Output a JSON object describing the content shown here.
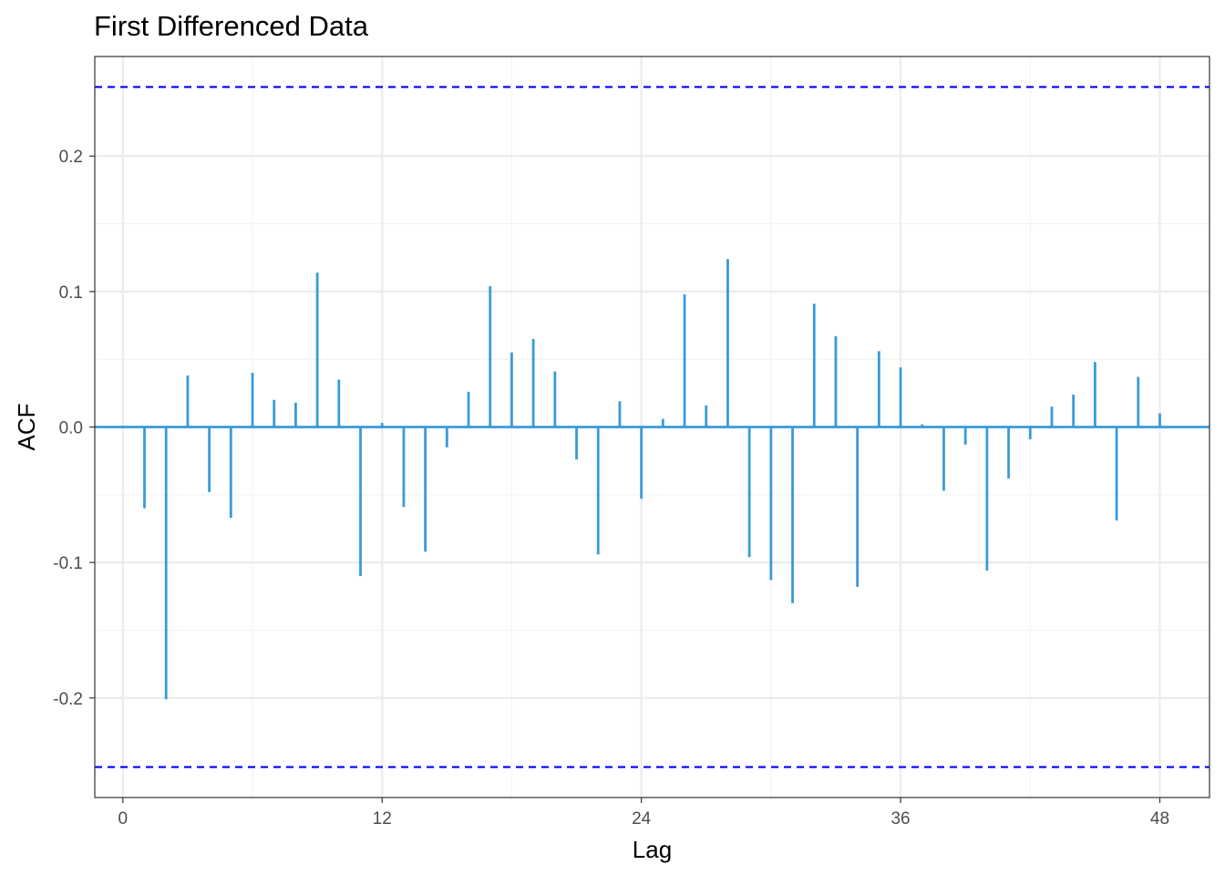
{
  "chart_data": {
    "type": "bar",
    "title": "First Differenced Data",
    "xlabel": "Lag",
    "ylabel": "ACF",
    "xlim": [
      -1.3,
      50.3
    ],
    "ylim": [
      -0.2735,
      0.2735
    ],
    "x_ticks": [
      0,
      12,
      24,
      36,
      48
    ],
    "x_tick_labels": [
      "0",
      "12",
      "24",
      "36",
      "48"
    ],
    "y_ticks": [
      -0.2,
      -0.1,
      0.0,
      0.1,
      0.2
    ],
    "y_tick_labels": [
      "-0.2",
      "-0.1",
      "0.0",
      "0.1",
      "0.2"
    ],
    "grid": true,
    "significance_bounds": [
      0.251,
      -0.251
    ],
    "series": [
      {
        "x": [
          1,
          2,
          3,
          4,
          5,
          6,
          7,
          8,
          9,
          10,
          11,
          12,
          13,
          14,
          15,
          16,
          17,
          18,
          19,
          20,
          21,
          22,
          23,
          24,
          25,
          26,
          27,
          28,
          29,
          30,
          31,
          32,
          33,
          34,
          35,
          36,
          37,
          38,
          39,
          40,
          41,
          42,
          43,
          44,
          45,
          46,
          47,
          48
        ],
        "values": [
          -0.06,
          -0.201,
          0.038,
          -0.048,
          -0.067,
          0.04,
          0.02,
          0.018,
          0.114,
          0.035,
          -0.11,
          0.003,
          -0.059,
          -0.092,
          -0.015,
          0.026,
          0.104,
          0.055,
          0.065,
          0.041,
          -0.024,
          -0.094,
          0.019,
          -0.053,
          0.006,
          0.098,
          0.016,
          0.124,
          -0.096,
          -0.113,
          -0.13,
          0.091,
          0.067,
          -0.118,
          0.056,
          0.044,
          0.002,
          -0.047,
          -0.013,
          -0.106,
          -0.038,
          -0.009,
          0.015,
          0.024,
          0.048,
          -0.069,
          0.037,
          0.01
        ]
      }
    ],
    "colors": {
      "bar": "#3a9ad9",
      "bound": "#0000ff",
      "grid_major": "#ebebeb",
      "grid_minor": "#f2f2f2",
      "panel_border": "#333333"
    }
  }
}
